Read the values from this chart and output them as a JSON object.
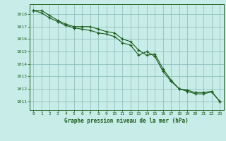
{
  "title": "Graphe pression niveau de la mer (hPa)",
  "bg_color": "#c8ece8",
  "grid_color": "#88bbbb",
  "line_color": "#1a5c1a",
  "marker_color": "#1a5c1a",
  "xlim": [
    -0.5,
    23.5
  ],
  "ylim": [
    1010.3,
    1018.8
  ],
  "yticks": [
    1011,
    1012,
    1013,
    1014,
    1015,
    1016,
    1017,
    1018
  ],
  "xticks": [
    0,
    1,
    2,
    3,
    4,
    5,
    6,
    7,
    8,
    9,
    10,
    11,
    12,
    13,
    14,
    15,
    16,
    17,
    18,
    19,
    20,
    21,
    22,
    23
  ],
  "series1_x": [
    0,
    1,
    2,
    3,
    4,
    5,
    6,
    7,
    8,
    9,
    10,
    11,
    12,
    13,
    14,
    15,
    16,
    17,
    18,
    19,
    20,
    21,
    22,
    23
  ],
  "series1_y": [
    1018.3,
    1018.3,
    1017.9,
    1017.5,
    1017.2,
    1017.0,
    1017.0,
    1017.0,
    1016.8,
    1016.6,
    1016.5,
    1016.0,
    1015.8,
    1015.1,
    1014.7,
    1014.8,
    1013.6,
    1012.7,
    1012.0,
    1011.9,
    1011.7,
    1011.7,
    1011.8,
    1011.0
  ],
  "series2_x": [
    0,
    1,
    2,
    3,
    4,
    5,
    6,
    7,
    8,
    9,
    10,
    11,
    12,
    13,
    14,
    15,
    16,
    17,
    18,
    19,
    20,
    21,
    22,
    23
  ],
  "series2_y": [
    1018.3,
    1018.1,
    1017.7,
    1017.4,
    1017.1,
    1016.9,
    1016.8,
    1016.7,
    1016.5,
    1016.4,
    1016.2,
    1015.7,
    1015.5,
    1014.7,
    1015.0,
    1014.6,
    1013.4,
    1012.6,
    1012.0,
    1011.8,
    1011.6,
    1011.6,
    1011.75,
    1011.0
  ]
}
